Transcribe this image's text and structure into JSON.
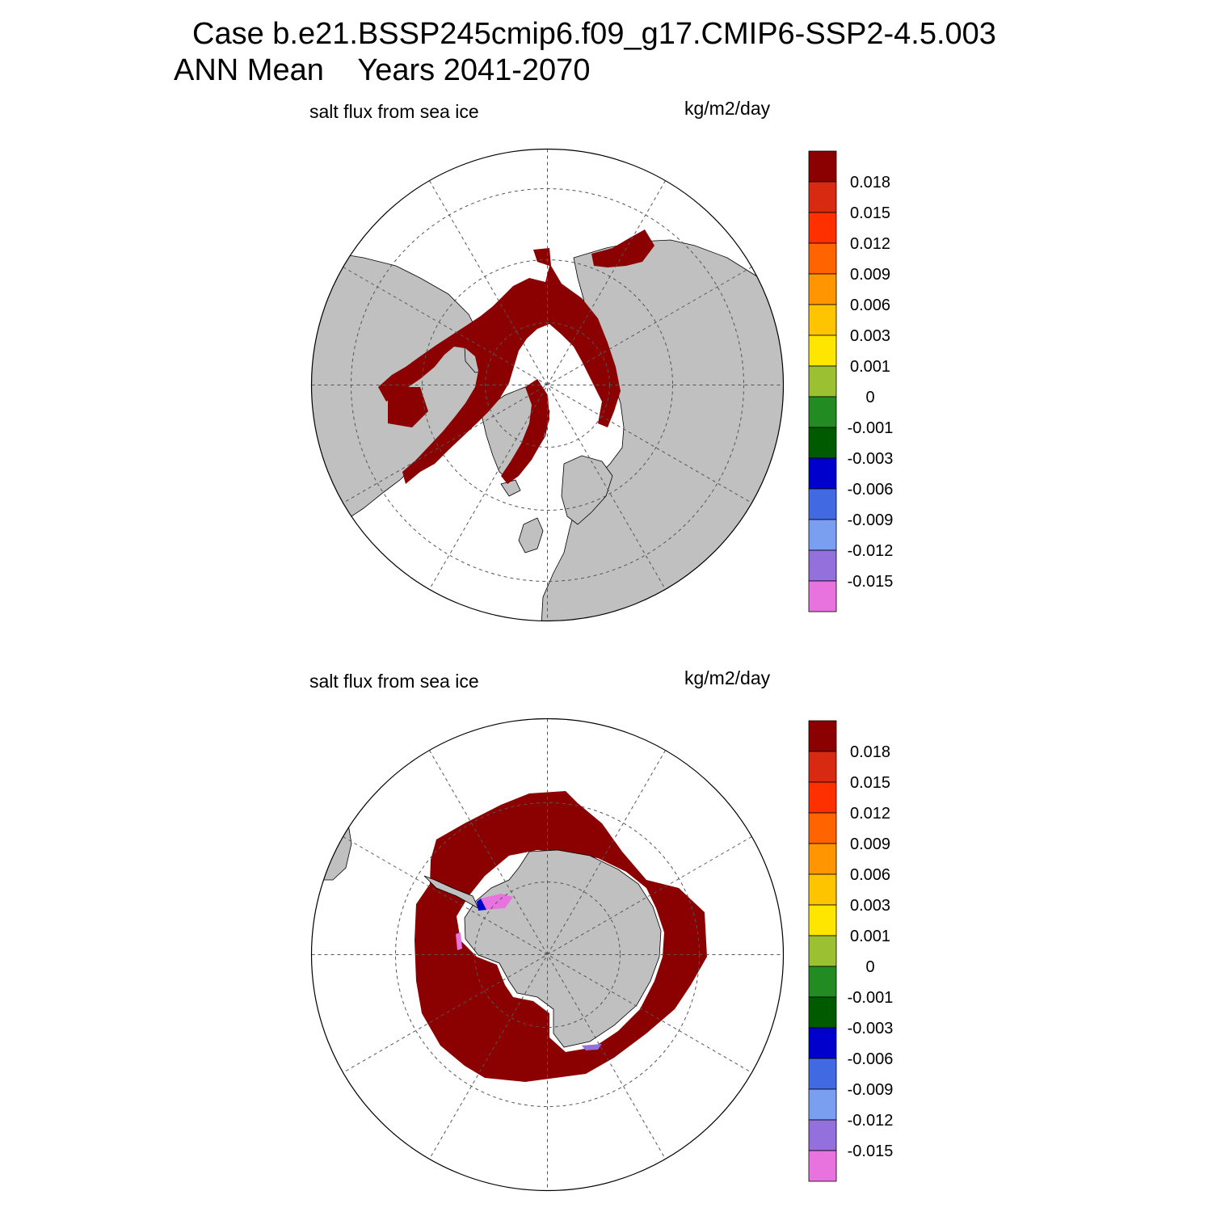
{
  "figure": {
    "title_line1": "Case b.e21.BSSP245cmip6.f09_g17.CMIP6-SSP2-4.5.003",
    "title_line2": "ANN Mean    Years 2041-2070"
  },
  "colors": {
    "land": "#c0c0c0",
    "ocean": "#ffffff",
    "ice_field": "#8b0000",
    "grid": "#555555"
  },
  "colorbar": {
    "colors": [
      "#8b0000",
      "#d82a10",
      "#ff3000",
      "#ff6400",
      "#ff9500",
      "#ffc400",
      "#ffe600",
      "#9bc032",
      "#228b22",
      "#005a00",
      "#0000cd",
      "#4169e1",
      "#7b9ff0",
      "#9370db",
      "#e873df"
    ],
    "labels": [
      "0.018",
      "0.015",
      "0.012",
      "0.009",
      "0.006",
      "0.003",
      "0.001",
      "0",
      "-0.001",
      "-0.003",
      "-0.006",
      "-0.009",
      "-0.012",
      "-0.015"
    ]
  },
  "panels": [
    {
      "id": "north",
      "hemisphere": "Northern Hemisphere polar stereographic",
      "left_label": "salt flux from sea ice",
      "right_label": "kg/m2/day"
    },
    {
      "id": "south",
      "hemisphere": "Southern Hemisphere polar stereographic",
      "left_label": "salt flux from sea ice",
      "right_label": "kg/m2/day"
    }
  ]
}
